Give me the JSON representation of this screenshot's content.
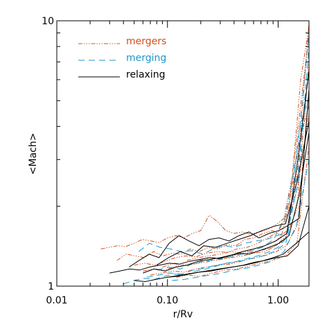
{
  "chart_data": {
    "type": "line",
    "title": "",
    "xlabel": "r/Rv",
    "ylabel": "<Mach>",
    "x_scale": "log",
    "y_scale": "log",
    "xlim": [
      0.01,
      1.9
    ],
    "ylim": [
      1,
      10
    ],
    "x_ticks": [
      {
        "value": 0.01,
        "label": "0.01"
      },
      {
        "value": 0.1,
        "label": "0.10"
      },
      {
        "value": 1.0,
        "label": "1.00"
      }
    ],
    "y_ticks": [
      {
        "value": 1,
        "label": "1"
      },
      {
        "value": 10,
        "label": "10"
      }
    ],
    "grid": false,
    "legend_position": "top-left",
    "groups": [
      {
        "name": "mergers",
        "color": "#d2501e",
        "dash": "6,2,1.5,2,1.5,2,1.5,2"
      },
      {
        "name": "merging",
        "color": "#1e96c8",
        "dash": "9,6"
      },
      {
        "name": "relaxing",
        "color": "#000000",
        "dash": ""
      }
    ],
    "series": [
      {
        "group": "mergers",
        "start": 0.025,
        "y": [
          1.38,
          1.4,
          1.42,
          1.41,
          1.45,
          1.5,
          1.48,
          1.46,
          1.52,
          1.55,
          1.52,
          1.58,
          1.62,
          1.85,
          1.75,
          1.62,
          1.58,
          1.6,
          1.57,
          1.6,
          1.63,
          1.7,
          1.8,
          2.6,
          6.0,
          9.5
        ]
      },
      {
        "group": "mergers",
        "start": 0.035,
        "y": [
          1.25,
          1.32,
          1.3,
          1.28,
          1.35,
          1.3,
          1.33,
          1.32,
          1.38,
          1.35,
          1.4,
          1.38,
          1.43,
          1.42,
          1.5,
          1.52,
          1.58,
          1.62,
          1.55,
          2.2,
          3.6,
          4.8
        ]
      },
      {
        "group": "mergers",
        "start": 0.05,
        "y": [
          1.2,
          1.22,
          1.2,
          1.24,
          1.28,
          1.3,
          1.29,
          1.33,
          1.35,
          1.34,
          1.38,
          1.4,
          1.45,
          1.52,
          1.6,
          1.9,
          4.2,
          8.8
        ]
      },
      {
        "group": "mergers",
        "start": 0.06,
        "y": [
          1.14,
          1.16,
          1.15,
          1.19,
          1.2,
          1.22,
          1.24,
          1.26,
          1.28,
          1.3,
          1.33,
          1.35,
          1.42,
          1.55,
          2.8,
          9.8
        ]
      },
      {
        "group": "mergers",
        "start": 0.07,
        "y": [
          1.1,
          1.12,
          1.14,
          1.13,
          1.16,
          1.18,
          1.2,
          1.21,
          1.24,
          1.27,
          1.3,
          1.34,
          1.42,
          1.7,
          5.5
        ]
      },
      {
        "group": "mergers",
        "start": 0.09,
        "y": [
          1.18,
          1.22,
          1.2,
          1.25,
          1.28,
          1.27,
          1.31,
          1.33,
          1.36,
          1.4,
          1.48,
          1.95,
          7.0
        ]
      },
      {
        "group": "mergers",
        "start": 0.12,
        "y": [
          1.08,
          1.1,
          1.09,
          1.12,
          1.15,
          1.16,
          1.19,
          1.22,
          1.25,
          1.3,
          1.45,
          3.4
        ]
      },
      {
        "group": "mergers",
        "start": 0.15,
        "y": [
          1.25,
          1.28,
          1.3,
          1.32,
          1.35,
          1.33,
          1.38,
          1.42,
          1.48,
          1.62,
          2.4,
          4.5
        ]
      },
      {
        "group": "merging",
        "start": 0.04,
        "y": [
          1.02,
          1.05,
          1.07,
          1.06,
          1.09,
          1.11,
          1.1,
          1.14,
          1.16,
          1.19,
          1.22,
          1.24,
          1.27,
          1.3,
          1.34,
          1.4,
          1.55,
          3.8,
          5.2
        ]
      },
      {
        "group": "merging",
        "start": 0.055,
        "y": [
          1.35,
          1.45,
          1.4,
          1.38,
          1.35,
          1.36,
          1.32,
          1.38,
          1.42,
          1.4,
          1.45,
          1.48,
          1.5,
          1.55,
          1.6,
          2.5,
          8.0
        ]
      },
      {
        "group": "merging",
        "start": 0.065,
        "y": [
          1.08,
          1.1,
          1.12,
          1.11,
          1.15,
          1.17,
          1.2,
          1.22,
          1.24,
          1.27,
          1.3,
          1.35,
          1.45,
          2.6,
          6.5
        ]
      },
      {
        "group": "merging",
        "start": 0.08,
        "y": [
          1.15,
          1.18,
          1.16,
          1.21,
          1.24,
          1.26,
          1.28,
          1.31,
          1.35,
          1.4,
          1.5,
          1.85,
          3.2,
          9.0
        ]
      },
      {
        "group": "merging",
        "start": 0.11,
        "y": [
          1.05,
          1.06,
          1.08,
          1.1,
          1.12,
          1.15,
          1.17,
          1.2,
          1.24,
          1.35,
          1.7,
          3.0
        ]
      },
      {
        "group": "relaxing",
        "start": 0.03,
        "y": [
          1.12,
          1.14,
          1.16,
          1.15,
          1.18,
          1.2,
          1.22,
          1.21,
          1.24,
          1.26,
          1.28,
          1.27,
          1.3,
          1.33,
          1.32,
          1.36,
          1.4,
          1.45,
          1.55,
          2.2,
          3.8
        ]
      },
      {
        "group": "relaxing",
        "start": 0.045,
        "y": [
          1.18,
          1.25,
          1.32,
          1.28,
          1.45,
          1.55,
          1.48,
          1.42,
          1.5,
          1.52,
          1.48,
          1.55,
          1.6,
          1.52,
          1.58,
          1.62,
          1.7,
          1.8,
          5.5
        ]
      },
      {
        "group": "relaxing",
        "start": 0.05,
        "y": [
          1.05,
          1.04,
          1.06,
          1.08,
          1.09,
          1.11,
          1.13,
          1.14,
          1.16,
          1.18,
          1.2,
          1.23,
          1.25,
          1.28,
          1.3,
          1.42,
          2.0
        ]
      },
      {
        "group": "relaxing",
        "start": 0.06,
        "y": [
          1.12,
          1.16,
          1.14,
          1.18,
          1.2,
          1.24,
          1.26,
          1.28,
          1.31,
          1.35,
          1.38,
          1.42,
          1.48,
          1.58,
          3.0,
          6.5
        ]
      },
      {
        "group": "relaxing",
        "start": 0.08,
        "y": [
          1.2,
          1.28,
          1.35,
          1.3,
          1.42,
          1.4,
          1.45,
          1.5,
          1.55,
          1.62,
          1.68,
          1.72,
          2.5,
          4.2
        ]
      },
      {
        "group": "relaxing",
        "start": 0.1,
        "y": [
          1.08,
          1.1,
          1.12,
          1.14,
          1.16,
          1.18,
          1.2,
          1.23,
          1.27,
          1.32,
          1.45,
          1.6
        ]
      }
    ]
  }
}
